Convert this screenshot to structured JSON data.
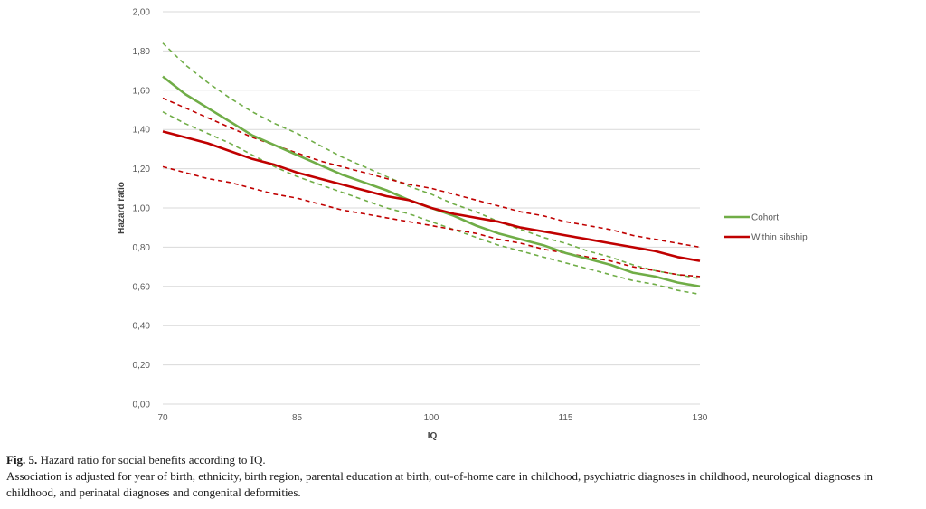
{
  "chart_data": {
    "type": "line",
    "xlabel": "IQ",
    "ylabel": "Hazard ratio",
    "xlim": [
      70,
      130
    ],
    "ylim": [
      0,
      2.0
    ],
    "x_ticks": [
      "70",
      "85",
      "100",
      "115",
      "130"
    ],
    "y_ticks": [
      "0,00",
      "0,20",
      "0,40",
      "0,60",
      "0,80",
      "1,00",
      "1,20",
      "1,40",
      "1,60",
      "1,80",
      "2,00"
    ],
    "grid": "horizontal",
    "legend_position": "right",
    "x": [
      70,
      72.5,
      75,
      77.5,
      80,
      82.5,
      85,
      87.5,
      90,
      92.5,
      95,
      97.5,
      100,
      102.5,
      105,
      107.5,
      110,
      112.5,
      115,
      117.5,
      120,
      122.5,
      125,
      127.5,
      130
    ],
    "series": [
      {
        "name": "Cohort",
        "color": "#70ad47",
        "style": "solid",
        "values": [
          1.67,
          1.58,
          1.51,
          1.44,
          1.37,
          1.32,
          1.27,
          1.22,
          1.17,
          1.13,
          1.09,
          1.04,
          1.0,
          0.96,
          0.91,
          0.87,
          0.84,
          0.81,
          0.77,
          0.74,
          0.71,
          0.67,
          0.65,
          0.62,
          0.6
        ]
      },
      {
        "name": "Within sibship",
        "color": "#c00000",
        "style": "solid",
        "values": [
          1.39,
          1.36,
          1.33,
          1.29,
          1.25,
          1.22,
          1.18,
          1.15,
          1.12,
          1.09,
          1.06,
          1.04,
          1.0,
          0.97,
          0.95,
          0.93,
          0.9,
          0.88,
          0.86,
          0.84,
          0.82,
          0.8,
          0.78,
          0.75,
          0.73
        ]
      },
      {
        "name": "",
        "color": "#70ad47",
        "style": "dashed",
        "values": [
          1.84,
          1.73,
          1.64,
          1.56,
          1.49,
          1.43,
          1.38,
          1.32,
          1.26,
          1.21,
          1.16,
          1.11,
          1.07,
          1.02,
          0.98,
          0.93,
          0.89,
          0.85,
          0.82,
          0.78,
          0.75,
          0.71,
          0.68,
          0.66,
          0.64
        ]
      },
      {
        "name": "",
        "color": "#70ad47",
        "style": "dashed",
        "values": [
          1.49,
          1.43,
          1.38,
          1.33,
          1.27,
          1.21,
          1.16,
          1.12,
          1.08,
          1.04,
          1.0,
          0.97,
          0.93,
          0.89,
          0.85,
          0.81,
          0.78,
          0.75,
          0.72,
          0.69,
          0.66,
          0.63,
          0.61,
          0.58,
          0.56
        ]
      },
      {
        "name": "",
        "color": "#c00000",
        "style": "dashed",
        "values": [
          1.56,
          1.51,
          1.46,
          1.41,
          1.36,
          1.32,
          1.28,
          1.24,
          1.21,
          1.18,
          1.15,
          1.12,
          1.1,
          1.07,
          1.04,
          1.01,
          0.98,
          0.96,
          0.93,
          0.91,
          0.89,
          0.86,
          0.84,
          0.82,
          0.8
        ]
      },
      {
        "name": "",
        "color": "#c00000",
        "style": "dashed",
        "values": [
          1.21,
          1.18,
          1.15,
          1.13,
          1.1,
          1.07,
          1.05,
          1.02,
          0.99,
          0.97,
          0.95,
          0.93,
          0.91,
          0.89,
          0.87,
          0.84,
          0.82,
          0.79,
          0.77,
          0.75,
          0.73,
          0.7,
          0.68,
          0.66,
          0.65
        ]
      }
    ]
  },
  "caption": {
    "label": "Fig. 5.",
    "title": "Hazard ratio for social benefits according to IQ.",
    "text": "Association is adjusted for year of birth, ethnicity, birth region, parental education at birth, out-of-home care in childhood, psychiatric diagnoses in childhood, neurological diagnoses in childhood, and perinatal diagnoses and congenital deformities."
  }
}
